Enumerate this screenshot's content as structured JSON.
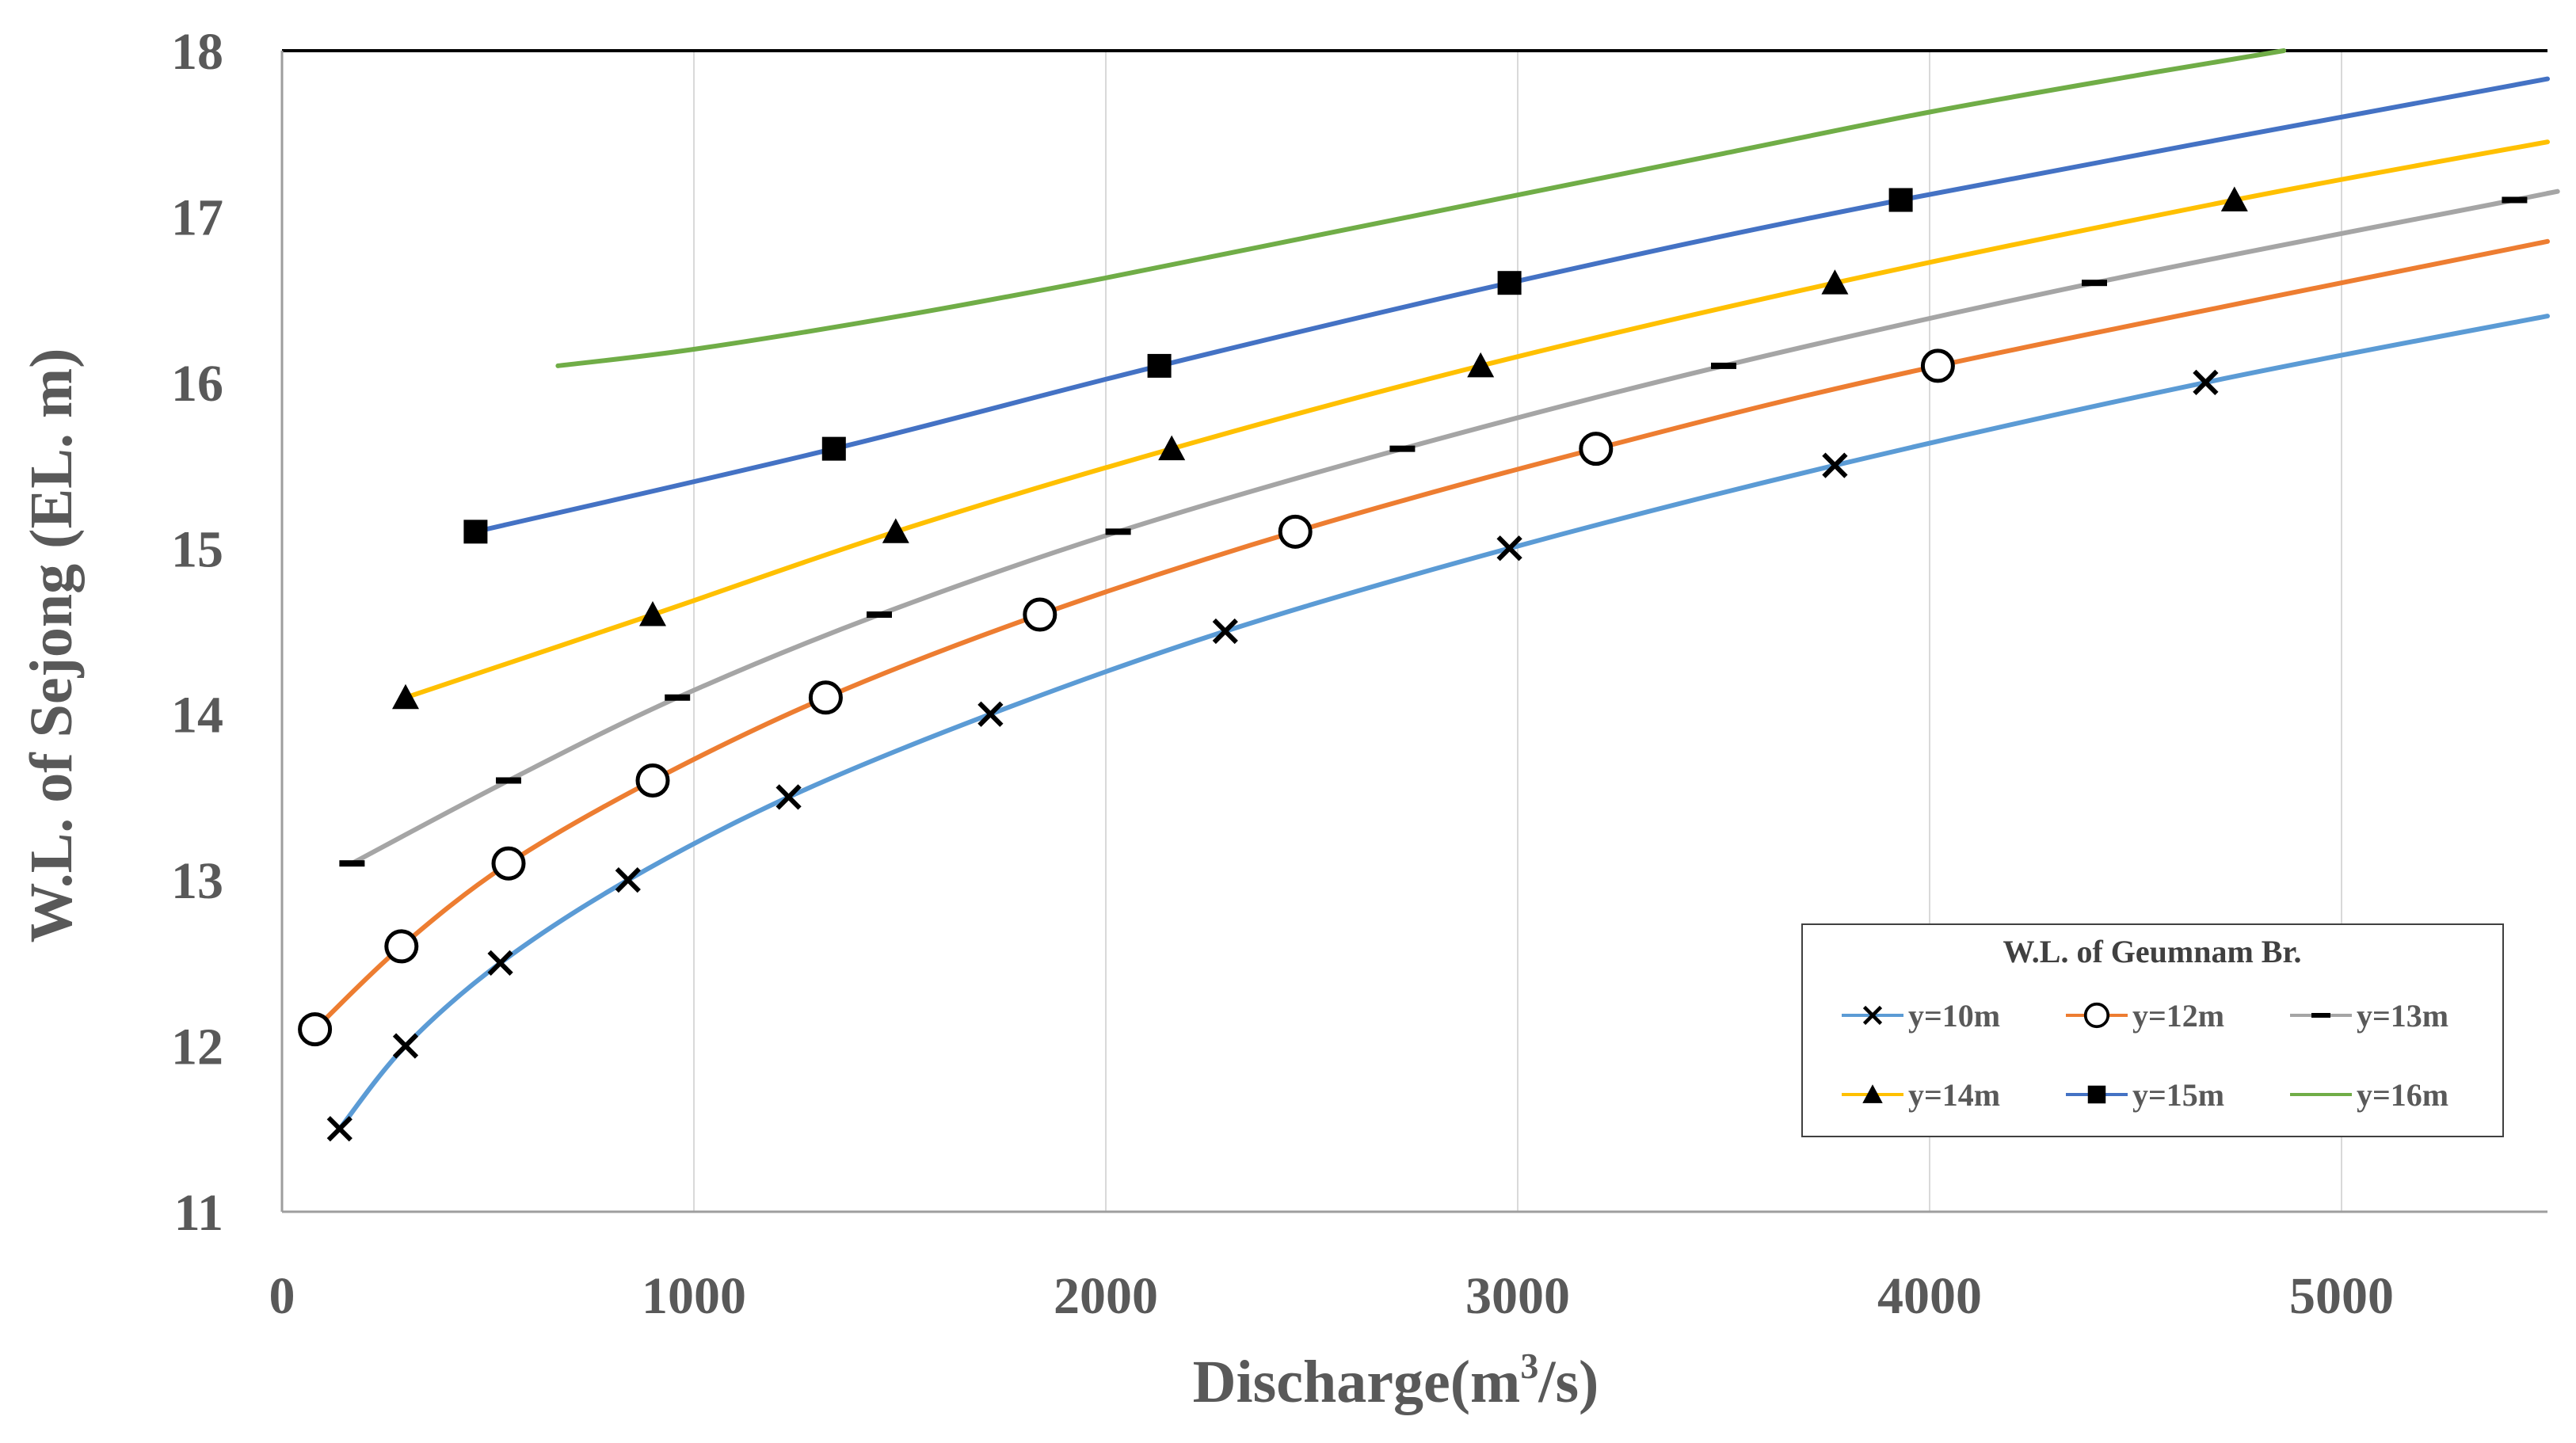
{
  "chart_data": {
    "type": "line",
    "title": "",
    "xlabel": "Discharge(m³/s)",
    "xlabel_main": "Discharge(m",
    "xlabel_sup": "3",
    "xlabel_end": "/s)",
    "ylabel": "W.L. of Sejong (EL. m)",
    "xlim": [
      0,
      5500
    ],
    "ylim": [
      11,
      18
    ],
    "xticks": [
      0,
      1000,
      2000,
      3000,
      4000,
      5000
    ],
    "yticks": [
      11,
      12,
      13,
      14,
      15,
      16,
      17,
      18
    ],
    "grid": "vertical",
    "legend": {
      "title": "W.L. of Geumnam Br.",
      "position": "bottom-right"
    },
    "series": [
      {
        "name": "y=10m",
        "color": "#5B9BD5",
        "marker": "x",
        "x": [
          140,
          300,
          530,
          840,
          1230,
          1720,
          2290,
          2980,
          3770,
          4670,
          5500
        ],
        "y": [
          11.5,
          12.0,
          12.5,
          13.0,
          13.5,
          14.0,
          14.5,
          15.0,
          15.5,
          16.0,
          16.4
        ]
      },
      {
        "name": "y=12m",
        "color": "#ED7D31",
        "marker": "circle",
        "x": [
          80,
          290,
          550,
          900,
          1320,
          1840,
          2460,
          3190,
          4020,
          5500
        ],
        "y": [
          12.1,
          12.6,
          13.1,
          13.6,
          14.1,
          14.6,
          15.1,
          15.6,
          16.1,
          16.85
        ]
      },
      {
        "name": "y=13m",
        "color": "#A5A5A5",
        "marker": "dash",
        "x": [
          170,
          550,
          960,
          1450,
          2030,
          2720,
          3500,
          4400,
          5420,
          5500
        ],
        "y": [
          13.1,
          13.6,
          14.1,
          14.6,
          15.1,
          15.6,
          16.1,
          16.6,
          17.1,
          17.14
        ]
      },
      {
        "name": "y=14m",
        "color": "#FFC000",
        "marker": "triangle",
        "x": [
          300,
          900,
          1490,
          2160,
          2910,
          3770,
          4740,
          5500
        ],
        "y": [
          14.1,
          14.6,
          15.1,
          15.6,
          16.1,
          16.6,
          17.1,
          17.45
        ]
      },
      {
        "name": "y=15m",
        "color": "#4472C4",
        "marker": "square",
        "x": [
          470,
          1340,
          2130,
          2980,
          3930,
          5500
        ],
        "y": [
          15.1,
          15.6,
          16.1,
          16.6,
          17.1,
          17.83
        ]
      },
      {
        "name": "y=16m",
        "color": "#70AD47",
        "marker": "none",
        "x": [
          670,
          1000,
          1500,
          2000,
          2500,
          3000,
          3500,
          4000,
          4500,
          4860
        ],
        "y": [
          16.1,
          16.2,
          16.4,
          16.63,
          16.88,
          17.13,
          17.38,
          17.63,
          17.85,
          18.0
        ]
      }
    ]
  }
}
